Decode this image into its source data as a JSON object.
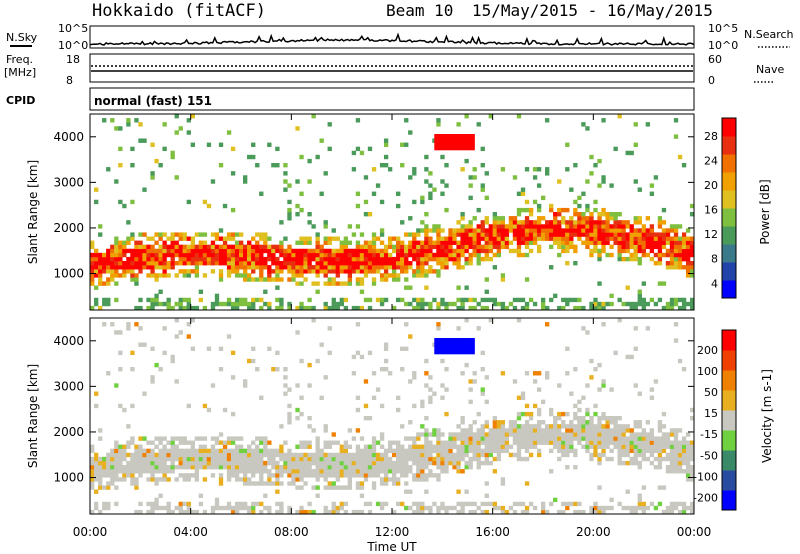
{
  "header": {
    "station": "Hokkaido (fitACF)",
    "beam": "Beam 10",
    "dates": "15/May/2015 - 16/May/2015"
  },
  "top_panels": {
    "nsky_label": "N.Sky",
    "nsky_ticks": [
      "10^5",
      "10^0"
    ],
    "nsearch_label": "N.Search",
    "nsearch_ticks": [
      "10^5",
      "10^0"
    ],
    "freq_label": "Freq.",
    "freq_unit": "[MHz]",
    "freq_ticks": [
      "18",
      "8"
    ],
    "nave_label": "Nave",
    "nave_ticks": [
      "60",
      "0"
    ],
    "cpid_label": "CPID",
    "cpid_value": "normal (fast) 151"
  },
  "chart_data": [
    {
      "type": "heatmap",
      "name": "power",
      "ylabel": "Slant Range [km]",
      "yticks": [
        "4000",
        "3000",
        "2000",
        "1000"
      ],
      "ylim": [
        200,
        4500
      ],
      "colorbar_label": "Power [dB]",
      "colorbar_ticks": [
        "28",
        "24",
        "20",
        "16",
        "12",
        "8",
        "4"
      ],
      "colors": [
        "#0000ff",
        "#2244aa",
        "#3b7a8a",
        "#4a9a5a",
        "#7fbf3f",
        "#e0c020",
        "#f0a000",
        "#f07000",
        "#e83010",
        "#ff0000"
      ]
    },
    {
      "type": "heatmap",
      "name": "velocity",
      "ylabel": "Slant Range [km]",
      "yticks": [
        "4000",
        "3000",
        "2000",
        "1000"
      ],
      "ylim": [
        200,
        4500
      ],
      "colorbar_label": "Velocity [m s-1]",
      "colorbar_ticks": [
        "200",
        "100",
        "50",
        "15",
        "-15",
        "-50",
        "-100",
        "-200"
      ],
      "colors": [
        "#0000ff",
        "#2a4ca0",
        "#3a8a6a",
        "#6fd040",
        "#c8c8c0",
        "#e8b020",
        "#f08000",
        "#f04000",
        "#ff0000"
      ]
    }
  ],
  "time_axis": {
    "label": "Time UT",
    "ticks": [
      "00:00",
      "04:00",
      "08:00",
      "12:00",
      "16:00",
      "20:00",
      "00:00"
    ]
  }
}
